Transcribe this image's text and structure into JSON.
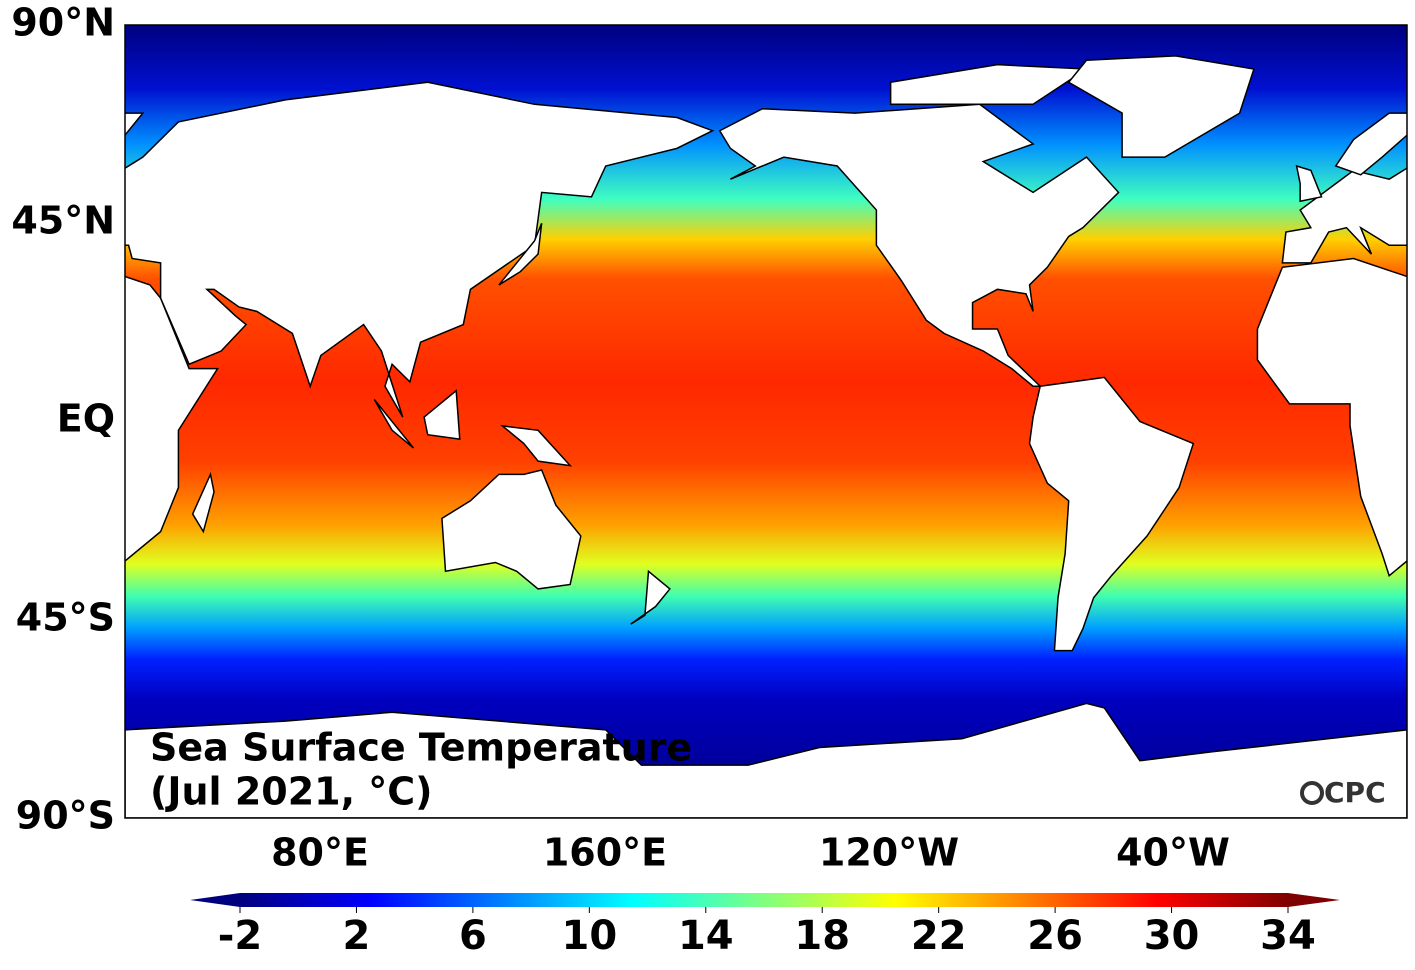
{
  "map": {
    "title": [
      "Sea Surface Temperature",
      "(Jul 2021, °C)"
    ],
    "lat_labels": [
      "90°N",
      "45°N",
      "EQ",
      "45°S",
      "90°S"
    ],
    "lon_labels": [
      "80°E",
      "160°E",
      "120°W",
      "40°W"
    ],
    "colorbar": {
      "lim": [
        -2,
        34
      ],
      "ticks": [
        -2,
        2,
        6,
        10,
        14,
        18,
        22,
        26,
        30,
        34
      ]
    },
    "logo": "CPC"
  }
}
